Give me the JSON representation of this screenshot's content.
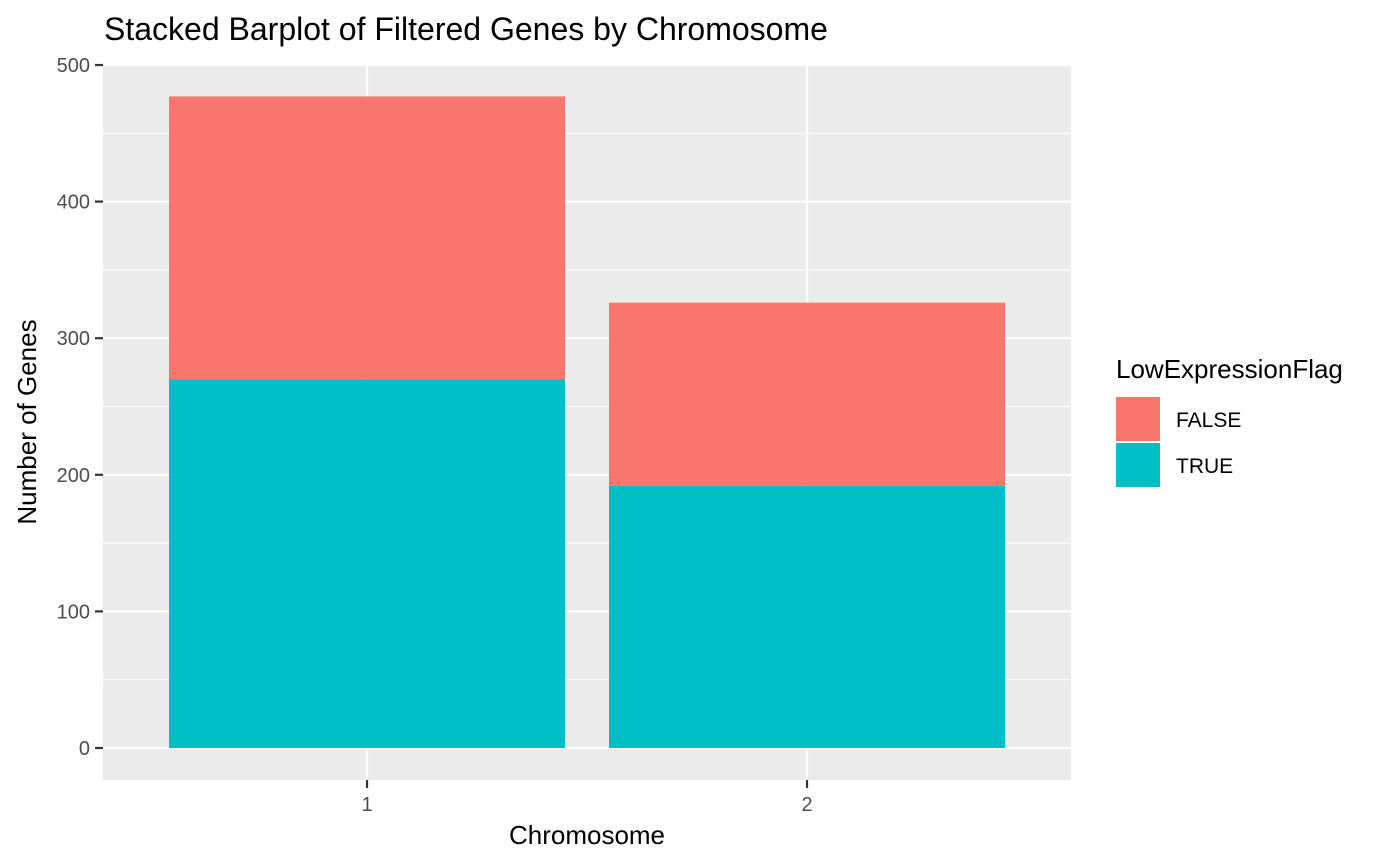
{
  "chart_data": {
    "type": "bar",
    "stacked": true,
    "title": "Stacked Barplot of Filtered Genes by Chromosome",
    "xlabel": "Chromosome",
    "ylabel": "Number of Genes",
    "categories": [
      "1",
      "2"
    ],
    "ylim": [
      0,
      500
    ],
    "yticks": [
      0,
      100,
      200,
      300,
      400,
      500
    ],
    "grid": true,
    "legend": {
      "title": "LowExpressionFlag",
      "position": "right"
    },
    "series": [
      {
        "name": "TRUE",
        "values": [
          270,
          192
        ],
        "color": "#00BFC4"
      },
      {
        "name": "FALSE",
        "values": [
          207,
          134
        ],
        "color": "#F8766D"
      }
    ],
    "legend_order": [
      "FALSE",
      "TRUE"
    ],
    "panel_background": "#EBEBEB",
    "grid_color": "#FFFFFF"
  }
}
